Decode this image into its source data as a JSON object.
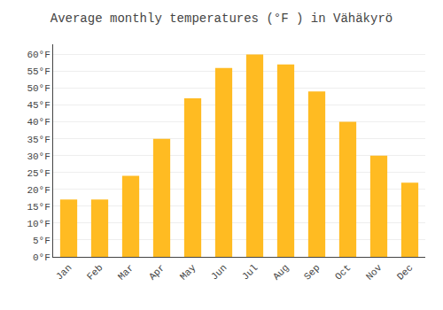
{
  "chart_data": {
    "type": "bar",
    "title": "Average monthly temperatures (°F ) in Vähäkyrö",
    "categories": [
      "Jan",
      "Feb",
      "Mar",
      "Apr",
      "May",
      "Jun",
      "Jul",
      "Aug",
      "Sep",
      "Oct",
      "Nov",
      "Dec"
    ],
    "values": [
      17.0,
      17.0,
      24.0,
      35.0,
      47.0,
      56.0,
      60.0,
      57.0,
      49.0,
      40.0,
      30.0,
      22.0
    ],
    "color": "#FFBB22",
    "ylim": [
      0,
      63
    ],
    "yticks": [
      {
        "value": 0,
        "label": "0°F"
      },
      {
        "value": 5,
        "label": "5°F"
      },
      {
        "value": 10,
        "label": "10°F"
      },
      {
        "value": 15,
        "label": "15°F"
      },
      {
        "value": 20,
        "label": "20°F"
      },
      {
        "value": 25,
        "label": "25°F"
      },
      {
        "value": 30,
        "label": "30°F"
      },
      {
        "value": 35,
        "label": "35°F"
      },
      {
        "value": 40,
        "label": "40°F"
      },
      {
        "value": 45,
        "label": "45°F"
      },
      {
        "value": 50,
        "label": "50°F"
      },
      {
        "value": 55,
        "label": "55°F"
      },
      {
        "value": 60,
        "label": "60°F"
      }
    ],
    "grid": true
  }
}
